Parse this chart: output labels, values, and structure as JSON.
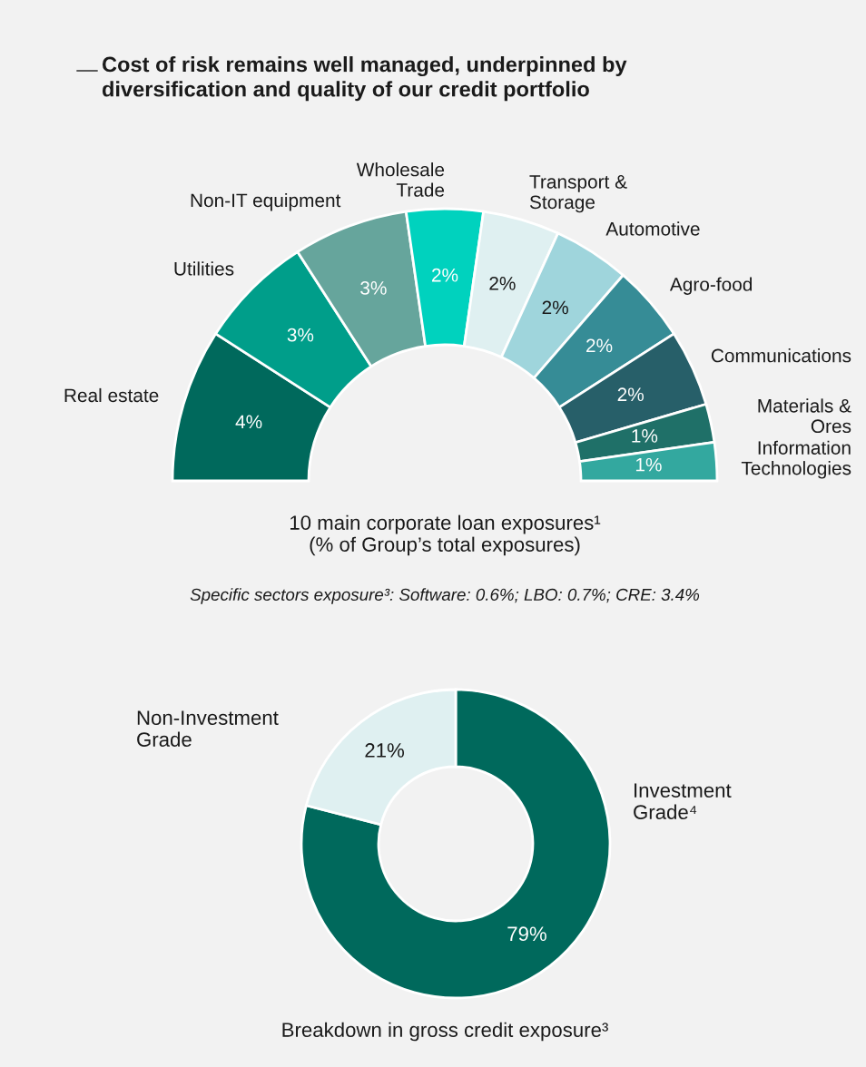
{
  "chart_data": [
    {
      "type": "donut",
      "title": "Cost of risk remains well managed, underpinned by\ndiversification and quality of our credit portfolio",
      "categories": [
        "Real estate",
        "Utilities",
        "Non-IT equipment",
        "Wholesale\nTrade",
        "Transport &\nStorage",
        "Automotive",
        "Agro-food",
        "Communications",
        "Materials &\nOres",
        "Information\nTechnologies"
      ],
      "values": [
        4,
        3,
        3,
        2,
        2,
        2,
        2,
        2,
        1,
        1
      ],
      "value_labels": [
        "4%",
        "3%",
        "3%",
        "2%",
        "2%",
        "2%",
        "2%",
        "2%",
        "1%",
        "1%"
      ],
      "colors": [
        "#00695c",
        "#009e8a",
        "#66a59c",
        "#00d2be",
        "#dff0f1",
        "#9fd5dc",
        "#368c96",
        "#275f69",
        "#1f7068",
        "#33a89f"
      ],
      "annotations": [
        "10 main corporate loan exposures¹\n(% of Group’s total exposures)",
        "Specific sectors exposure³: Software: 0.6%; LBO: 0.7%; CRE: 3.4%"
      ]
    },
    {
      "type": "donut",
      "categories": [
        "Investment\nGrade⁴",
        "Non-Investment\nGrade"
      ],
      "values": [
        79,
        21
      ],
      "value_labels": [
        "79%",
        "21%"
      ],
      "colors": [
        "#00695c",
        "#dff0f1"
      ],
      "annotations": [
        "Breakdown in gross credit exposure³"
      ]
    }
  ]
}
